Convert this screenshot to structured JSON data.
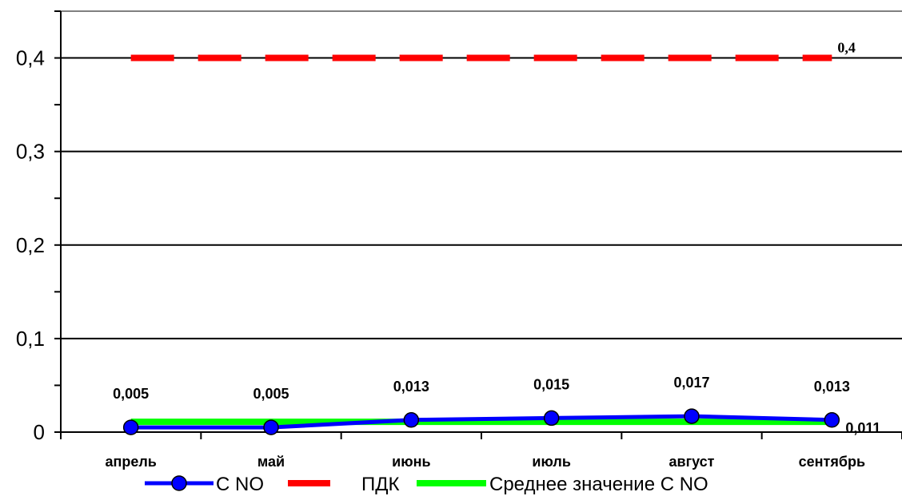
{
  "chart_data": {
    "type": "line",
    "categories": [
      "апрель",
      "май",
      "июнь",
      "июль",
      "август",
      "сентябрь"
    ],
    "ylim": [
      0,
      0.45
    ],
    "yticks": [
      0,
      0.1,
      0.2,
      0.3,
      0.4
    ],
    "ytick_labels": [
      "0",
      "0,1",
      "0,2",
      "0,3",
      "0,4"
    ],
    "grid": true,
    "legend_position": "bottom",
    "series": [
      {
        "name": "С NO",
        "values": [
          0.005,
          0.005,
          0.013,
          0.015,
          0.017,
          0.013
        ],
        "labels": [
          "0,005",
          "0,005",
          "0,013",
          "0,015",
          "0,017",
          "0,013"
        ],
        "color": "#0000ff",
        "marker_color": "#0000ff",
        "style": "solid-marker"
      },
      {
        "name": "ПДК",
        "values": [
          0.4,
          0.4,
          0.4,
          0.4,
          0.4,
          0.4
        ],
        "end_label": "0,4",
        "color": "#ff0000",
        "style": "dashed"
      },
      {
        "name": "Среднее значение С NO",
        "values": [
          0.011,
          0.011,
          0.011,
          0.011,
          0.011,
          0.011
        ],
        "end_label": "0,011",
        "color": "#00ff00",
        "style": "solid"
      }
    ]
  }
}
